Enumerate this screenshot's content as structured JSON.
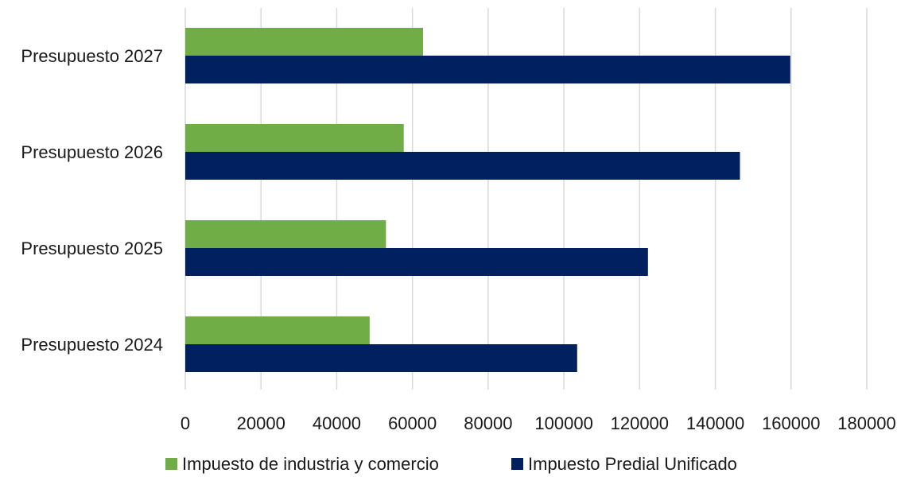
{
  "chart_data": {
    "type": "bar",
    "orientation": "horizontal",
    "categories": [
      "Presupuesto 2024",
      "Presupuesto 2025",
      "Presupuesto 2026",
      "Presupuesto 2027"
    ],
    "series": [
      {
        "name": "Impuesto de industria y comercio",
        "color": "#70ad47",
        "values": [
          48700,
          53000,
          57700,
          62800
        ]
      },
      {
        "name": "Impuesto Predial Unificado",
        "color": "#002060",
        "values": [
          103500,
          122200,
          146500,
          159800
        ]
      }
    ],
    "xlim": [
      0,
      180000
    ],
    "xticks": [
      "0",
      "20000",
      "40000",
      "60000",
      "80000",
      "100000",
      "120000",
      "140000",
      "160000",
      "180000"
    ],
    "grid": "vertical",
    "legend_position": "bottom"
  }
}
